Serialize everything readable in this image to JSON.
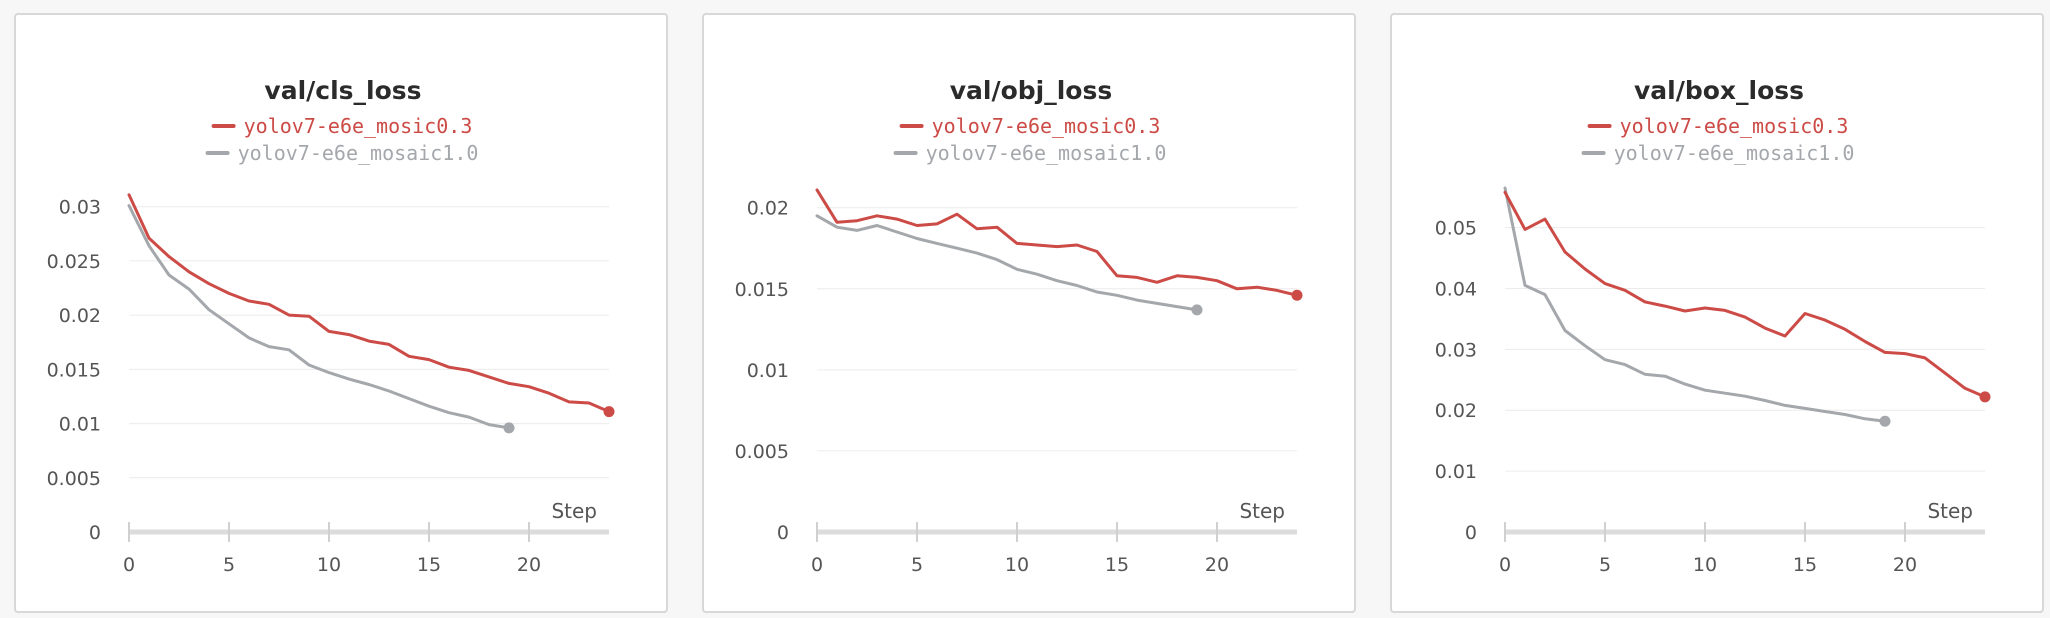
{
  "colors": {
    "run_a": "#cc4b46",
    "run_b": "#a4a7ab"
  },
  "chart_data": [
    {
      "type": "line",
      "title": "val/cls_loss",
      "xlabel": "Step",
      "ylabel": "",
      "xlim": [
        0,
        24
      ],
      "ylim": [
        0,
        0.032
      ],
      "xticks": [
        0,
        5,
        10,
        15,
        20
      ],
      "xtick_labels": [
        "0",
        "5",
        "10",
        "15",
        "20"
      ],
      "yticks": [
        0,
        0.005,
        0.01,
        0.015,
        0.02,
        0.025,
        0.03
      ],
      "ytick_labels": [
        "0",
        "0.005",
        "0.01",
        "0.015",
        "0.02",
        "0.025",
        "0.03"
      ],
      "grid": true,
      "legend_position": "top",
      "series": [
        {
          "name": "yolov7-e6e_mosic0.3",
          "color": "#cc4b46",
          "x": [
            0,
            1,
            2,
            3,
            4,
            5,
            6,
            7,
            8,
            9,
            10,
            11,
            12,
            13,
            14,
            15,
            16,
            17,
            18,
            19,
            20,
            21,
            22,
            23,
            24
          ],
          "y": [
            0.0311,
            0.0271,
            0.0254,
            0.024,
            0.0229,
            0.022,
            0.0213,
            0.021,
            0.02,
            0.0199,
            0.0185,
            0.0182,
            0.0176,
            0.0173,
            0.0162,
            0.0159,
            0.0152,
            0.0149,
            0.0143,
            0.0137,
            0.0134,
            0.0128,
            0.012,
            0.0119,
            0.0111
          ]
        },
        {
          "name": "yolov7-e6e_mosaic1.0",
          "color": "#a4a7ab",
          "x": [
            0,
            1,
            2,
            3,
            4,
            5,
            6,
            7,
            8,
            9,
            10,
            11,
            12,
            13,
            14,
            15,
            16,
            17,
            18,
            19
          ],
          "y": [
            0.0301,
            0.0264,
            0.0237,
            0.0224,
            0.0205,
            0.0192,
            0.0179,
            0.0171,
            0.0168,
            0.0154,
            0.0147,
            0.0141,
            0.0136,
            0.013,
            0.0123,
            0.0116,
            0.011,
            0.0106,
            0.0099,
            0.0096
          ]
        }
      ]
    },
    {
      "type": "line",
      "title": "val/obj_loss",
      "xlabel": "Step",
      "ylabel": "",
      "xlim": [
        0,
        24
      ],
      "ylim": [
        0,
        0.0214
      ],
      "xticks": [
        0,
        5,
        10,
        15,
        20
      ],
      "xtick_labels": [
        "0",
        "5",
        "10",
        "15",
        "20"
      ],
      "yticks": [
        0,
        0.005,
        0.01,
        0.015,
        0.02
      ],
      "ytick_labels": [
        "0",
        "0.005",
        "0.01",
        "0.015",
        "0.02"
      ],
      "grid": true,
      "legend_position": "top",
      "series": [
        {
          "name": "yolov7-e6e_mosic0.3",
          "color": "#cc4b46",
          "x": [
            0,
            1,
            2,
            3,
            4,
            5,
            6,
            7,
            8,
            9,
            10,
            11,
            12,
            13,
            14,
            15,
            16,
            17,
            18,
            19,
            20,
            21,
            22,
            23,
            24
          ],
          "y": [
            0.0211,
            0.0191,
            0.0192,
            0.0195,
            0.0193,
            0.0189,
            0.019,
            0.0196,
            0.0187,
            0.0188,
            0.0178,
            0.0177,
            0.0176,
            0.0177,
            0.0173,
            0.0158,
            0.0157,
            0.0154,
            0.0158,
            0.0157,
            0.0155,
            0.015,
            0.0151,
            0.0149,
            0.0146
          ]
        },
        {
          "name": "yolov7-e6e_mosaic1.0",
          "color": "#a4a7ab",
          "x": [
            0,
            1,
            2,
            3,
            4,
            5,
            6,
            7,
            8,
            9,
            10,
            11,
            12,
            13,
            14,
            15,
            16,
            17,
            18,
            19
          ],
          "y": [
            0.0195,
            0.0188,
            0.0186,
            0.0189,
            0.0185,
            0.0181,
            0.0178,
            0.0175,
            0.0172,
            0.0168,
            0.0162,
            0.0159,
            0.0155,
            0.0152,
            0.0148,
            0.0146,
            0.0143,
            0.0141,
            0.0139,
            0.0137
          ]
        }
      ]
    },
    {
      "type": "line",
      "title": "val/box_loss",
      "xlabel": "Step",
      "ylabel": "",
      "xlim": [
        0,
        24
      ],
      "ylim": [
        0,
        0.057
      ],
      "xticks": [
        0,
        5,
        10,
        15,
        20
      ],
      "xtick_labels": [
        "0",
        "5",
        "10",
        "15",
        "20"
      ],
      "yticks": [
        0,
        0.01,
        0.02,
        0.03,
        0.04,
        0.05
      ],
      "ytick_labels": [
        "0",
        "0.01",
        "0.02",
        "0.03",
        "0.04",
        "0.05"
      ],
      "grid": true,
      "legend_position": "top",
      "series": [
        {
          "name": "yolov7-e6e_mosic0.3",
          "color": "#cc4b46",
          "x": [
            0,
            1,
            2,
            3,
            4,
            5,
            6,
            7,
            8,
            9,
            10,
            11,
            12,
            13,
            14,
            15,
            16,
            17,
            18,
            19,
            20,
            21,
            22,
            23,
            24
          ],
          "y": [
            0.0558,
            0.0497,
            0.0514,
            0.046,
            0.0432,
            0.0408,
            0.0397,
            0.0378,
            0.0371,
            0.0363,
            0.0368,
            0.0364,
            0.0353,
            0.0335,
            0.0322,
            0.0359,
            0.0348,
            0.0333,
            0.0313,
            0.0295,
            0.0293,
            0.0286,
            0.0261,
            0.0236,
            0.0222
          ]
        },
        {
          "name": "yolov7-e6e_mosaic1.0",
          "color": "#a4a7ab",
          "x": [
            0,
            1,
            2,
            3,
            4,
            5,
            6,
            7,
            8,
            9,
            10,
            11,
            12,
            13,
            14,
            15,
            16,
            17,
            18,
            19
          ],
          "y": [
            0.0565,
            0.0405,
            0.039,
            0.0331,
            0.0306,
            0.0283,
            0.0275,
            0.0259,
            0.0256,
            0.0243,
            0.0233,
            0.0228,
            0.0223,
            0.0216,
            0.0208,
            0.0203,
            0.0198,
            0.0193,
            0.0186,
            0.0182
          ]
        }
      ]
    }
  ]
}
